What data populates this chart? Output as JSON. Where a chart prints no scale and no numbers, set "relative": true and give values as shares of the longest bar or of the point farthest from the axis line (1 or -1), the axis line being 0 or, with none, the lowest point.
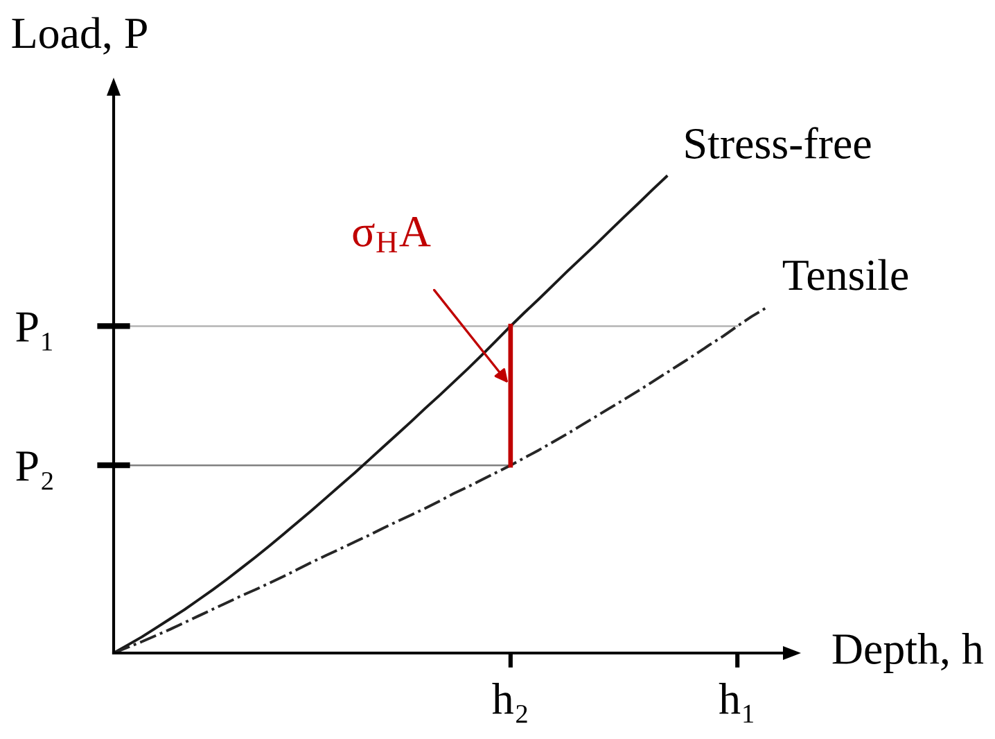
{
  "chart_data": {
    "type": "line",
    "xlabel": "Depth, h",
    "ylabel": "Load, P",
    "relative": true,
    "categories": [
      null,
      null,
      null,
      null,
      null,
      null,
      null,
      null,
      null,
      null,
      null,
      null,
      null,
      null,
      null,
      null,
      null,
      null,
      null,
      null,
      null,
      null,
      null,
      null,
      null,
      null,
      null,
      null,
      "h₂",
      null,
      null,
      null,
      null,
      null,
      null,
      null,
      null,
      null,
      null,
      null,
      null,
      null,
      null,
      null,
      "h₁",
      null,
      null
    ],
    "series": [
      {
        "name": "Stress-free",
        "color": "#1a1a1a",
        "line_style": "solid",
        "values": [
          0,
          0.017,
          0.034,
          0.053,
          0.072,
          0.091,
          0.112,
          0.133,
          0.155,
          0.178,
          0.201,
          0.225,
          0.25,
          0.275,
          0.3,
          0.326,
          0.352,
          0.378,
          0.405,
          0.432,
          0.459,
          0.486,
          0.514,
          0.541,
          0.569,
          0.597,
          0.626,
          0.656,
          0.686,
          0.715,
          0.743,
          0.772,
          0.801,
          0.829,
          0.857,
          0.886,
          0.915,
          0.943,
          0.972,
          1,
          null,
          null,
          null,
          null,
          null,
          null,
          null
        ]
      },
      {
        "name": "Tensile",
        "color": "#262626",
        "line_style": "dashdot",
        "values": [
          0,
          0.012,
          0.024,
          0.037,
          0.05,
          0.064,
          0.078,
          0.092,
          0.106,
          0.12,
          0.133,
          0.147,
          0.161,
          0.176,
          0.191,
          0.205,
          0.219,
          0.233,
          0.247,
          0.262,
          0.276,
          0.29,
          0.304,
          0.319,
          0.335,
          0.349,
          0.364,
          0.379,
          0.394,
          0.41,
          0.426,
          0.443,
          0.46,
          0.478,
          0.496,
          0.514,
          0.532,
          0.55,
          0.569,
          0.588,
          0.607,
          0.626,
          0.646,
          0.665,
          0.686,
          0.706,
          0.724
        ]
      },
      {
        "color": "#c00000",
        "line_style": "solid",
        "x": [
          "h₂",
          "h₂"
        ],
        "values": [
          0.394,
          0.686
        ]
      }
    ],
    "ref_lines": [
      {
        "axis": "y",
        "value": 0.686,
        "label": "P₁",
        "color": "#b3b3b3"
      },
      {
        "axis": "y",
        "value": 0.394,
        "label": "P₂",
        "color": "#808080"
      }
    ],
    "annotations": [
      {
        "text": "σ$_{H}$A",
        "x": "h₂",
        "y": 0.56
      }
    ]
  }
}
